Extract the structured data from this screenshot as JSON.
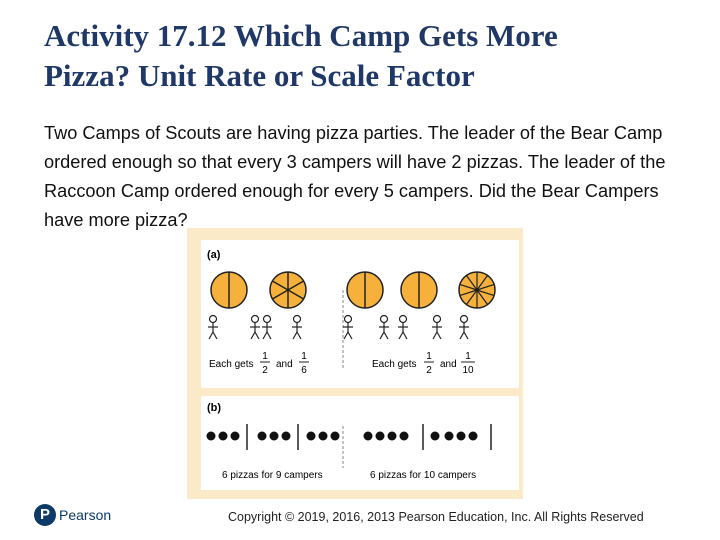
{
  "slide": {
    "title_line1": "Activity 17.12 Which Camp Gets More",
    "title_line2": "Pizza? Unit Rate or Scale Factor",
    "body": "Two Camps of Scouts are having pizza parties. The leader of the Bear Camp ordered enough so that every 3 campers will have 2 pizzas. The leader of the Raccoon Camp ordered enough for every 5 campers. Did the Bear Campers have more pizza?"
  },
  "figure": {
    "panel_a_label": "(a)",
    "panel_b_label": "(b)",
    "left_each_gets": "Each gets",
    "left_and": "and",
    "left_frac1_num": "1",
    "left_frac1_den": "2",
    "left_frac2_num": "1",
    "left_frac2_den": "6",
    "right_each_gets": "Each gets",
    "right_and": "and",
    "right_frac1_num": "1",
    "right_frac1_den": "2",
    "right_frac2_num": "1",
    "right_frac2_den": "10",
    "left_caption_b": "6 pizzas for 9 campers",
    "right_caption_b": "6 pizzas for 10 campers",
    "colors": {
      "panel_bg": "#fbeac7",
      "inner_bg": "#ffffff",
      "pizza_fill": "#f6b13d",
      "stroke": "#222222"
    }
  },
  "footer": {
    "logo_mark": "P",
    "logo_text": "Pearson",
    "copyright": "Copyright © 2019, 2016, 2013 Pearson Education, Inc. All Rights Reserved"
  }
}
